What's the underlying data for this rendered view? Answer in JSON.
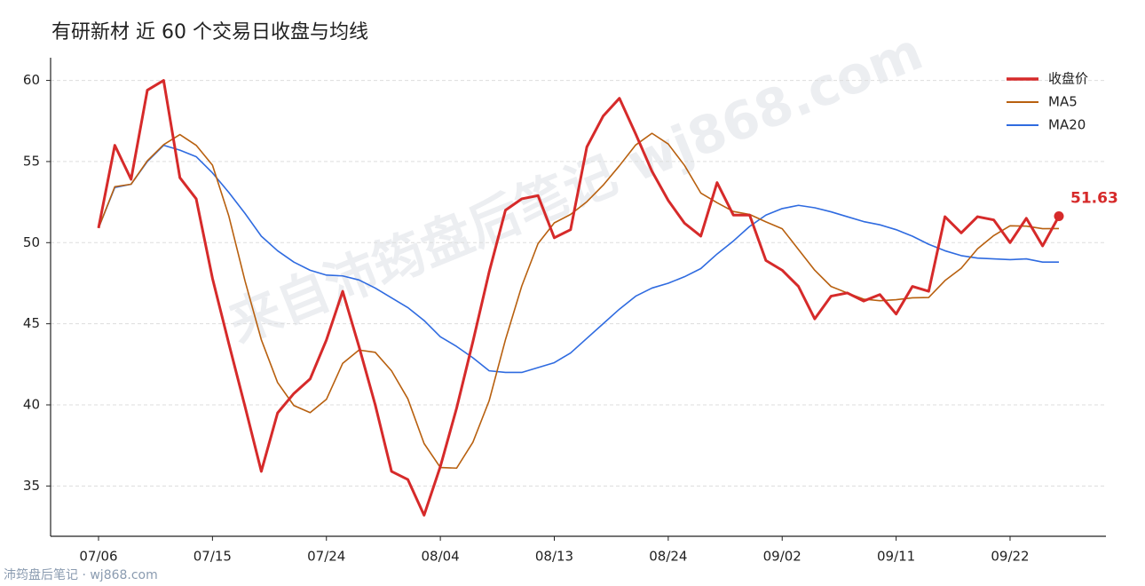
{
  "chart_data": {
    "type": "line",
    "title": "有研新材 近 60 个交易日收盘与均线",
    "categories": [
      "07/06",
      null,
      null,
      null,
      null,
      null,
      null,
      "07/15",
      null,
      null,
      null,
      null,
      null,
      null,
      "07/24",
      null,
      null,
      null,
      null,
      null,
      null,
      "08/04",
      null,
      null,
      null,
      null,
      null,
      null,
      "08/13",
      null,
      null,
      null,
      null,
      null,
      null,
      "08/24",
      null,
      null,
      null,
      null,
      null,
      null,
      "09/02",
      null,
      null,
      null,
      null,
      null,
      null,
      "09/11",
      null,
      null,
      null,
      null,
      null,
      null,
      "09/22",
      null,
      null,
      null
    ],
    "series": [
      {
        "name": "收盘价",
        "color": "#d62a2a",
        "values": [
          50.9,
          56.0,
          53.9,
          59.4,
          60.0,
          54.0,
          52.7,
          47.8,
          43.8,
          39.9,
          35.9,
          39.5,
          40.7,
          41.6,
          44.0,
          47.0,
          43.6,
          40.0,
          35.9,
          35.4,
          33.2,
          36.2,
          39.8,
          43.9,
          48.2,
          52.0,
          52.7,
          52.9,
          50.3,
          50.8,
          55.9,
          57.8,
          58.9,
          56.7,
          54.4,
          52.6,
          51.2,
          50.4,
          53.7,
          51.7,
          51.7,
          48.9,
          48.3,
          47.3,
          45.3,
          46.7,
          46.9,
          46.4,
          46.8,
          45.6,
          47.3,
          47.0,
          51.6,
          50.6,
          51.6,
          51.4,
          50.0,
          51.5,
          49.8,
          51.63
        ]
      },
      {
        "name": "MA5",
        "color": "#b8600f",
        "values": [
          50.9,
          53.45,
          53.6,
          55.05,
          56.04,
          56.66,
          56.0,
          54.78,
          51.66,
          47.64,
          44.02,
          41.38,
          39.96,
          39.52,
          40.34,
          42.56,
          43.38,
          43.24,
          42.1,
          40.38,
          37.62,
          36.14,
          36.1,
          37.7,
          40.26,
          44.02,
          47.32,
          49.94,
          51.22,
          51.74,
          52.52,
          53.54,
          54.74,
          56.02,
          56.74,
          56.08,
          54.76,
          53.06,
          52.46,
          51.92,
          51.74,
          51.28,
          50.86,
          49.58,
          48.3,
          47.3,
          46.9,
          46.52,
          46.42,
          46.48,
          46.6,
          46.62,
          47.66,
          48.42,
          49.62,
          50.44,
          51.04,
          51.02,
          50.86,
          50.87
        ]
      },
      {
        "name": "MA20",
        "color": "#2f6be0",
        "values": [
          50.9,
          53.4,
          53.6,
          55.0,
          56.0,
          55.7,
          55.3,
          54.3,
          53.1,
          51.8,
          50.4,
          49.5,
          48.8,
          48.3,
          48.0,
          47.95,
          47.7,
          47.2,
          46.6,
          46.0,
          45.2,
          44.2,
          43.6,
          42.9,
          42.1,
          42.0,
          42.0,
          42.3,
          42.6,
          43.2,
          44.1,
          45.0,
          45.9,
          46.7,
          47.2,
          47.5,
          47.9,
          48.4,
          49.3,
          50.1,
          51.0,
          51.7,
          52.1,
          52.3,
          52.15,
          51.9,
          51.6,
          51.3,
          51.1,
          50.8,
          50.4,
          49.9,
          49.5,
          49.2,
          49.05,
          49.0,
          48.95,
          49.0,
          48.8,
          48.8
        ]
      }
    ],
    "ylim": [
      31.9,
      61.4
    ],
    "yticks": [
      35,
      40,
      45,
      50,
      55,
      60
    ],
    "grid": true,
    "legend": "upper right",
    "watermark": "来自沛筠盘后笔记 wj868.com",
    "footer": "沛筠盘后笔记 · wj868.com"
  }
}
